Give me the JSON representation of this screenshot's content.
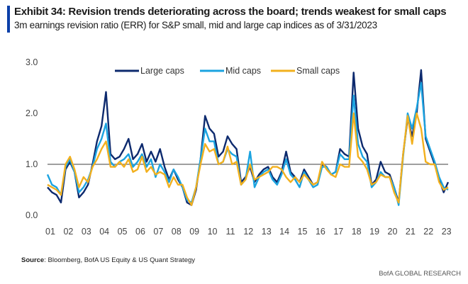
{
  "header": {
    "title": "Exhibit 34: Revision trends deteriorating across the board; trends weakest for small caps",
    "subtitle": "3m earnings revision ratio (ERR) for S&P small, mid and large cap indices as of 3/31/2023"
  },
  "footer": {
    "source_label": "Source",
    "source_text": ": Bloomberg, BofA US Equity & US Quant Strategy",
    "brand": "BofA GLOBAL RESEARCH"
  },
  "chart_data": {
    "type": "line",
    "title": "3m earnings revision ratio (ERR)",
    "xlabel": "",
    "ylabel": "",
    "ylim": [
      0,
      3
    ],
    "xlim": [
      2001,
      2023.25
    ],
    "yticks": [
      "0.0",
      "1.0",
      "2.0",
      "3.0"
    ],
    "ytick_values": [
      0,
      1,
      2,
      3
    ],
    "xticks": [
      "01",
      "02",
      "03",
      "04",
      "05",
      "06",
      "07",
      "08",
      "09",
      "10",
      "11",
      "12",
      "13",
      "14",
      "15",
      "16",
      "17",
      "18",
      "19",
      "20",
      "21",
      "22",
      "23"
    ],
    "reference_line": 1.0,
    "grid": false,
    "legend": "top-center",
    "x": [
      2001.0,
      2001.25,
      2001.5,
      2001.75,
      2002.0,
      2002.25,
      2002.5,
      2002.75,
      2003.0,
      2003.25,
      2003.5,
      2003.75,
      2004.0,
      2004.25,
      2004.5,
      2004.75,
      2005.0,
      2005.25,
      2005.5,
      2005.75,
      2006.0,
      2006.25,
      2006.5,
      2006.75,
      2007.0,
      2007.25,
      2007.5,
      2007.75,
      2008.0,
      2008.25,
      2008.5,
      2008.75,
      2009.0,
      2009.25,
      2009.5,
      2009.75,
      2010.0,
      2010.25,
      2010.5,
      2010.75,
      2011.0,
      2011.25,
      2011.5,
      2011.75,
      2012.0,
      2012.25,
      2012.5,
      2012.75,
      2013.0,
      2013.25,
      2013.5,
      2013.75,
      2014.0,
      2014.25,
      2014.5,
      2014.75,
      2015.0,
      2015.25,
      2015.5,
      2015.75,
      2016.0,
      2016.25,
      2016.5,
      2016.75,
      2017.0,
      2017.25,
      2017.5,
      2017.75,
      2018.0,
      2018.25,
      2018.5,
      2018.75,
      2019.0,
      2019.25,
      2019.5,
      2019.75,
      2020.0,
      2020.25,
      2020.5,
      2020.75,
      2021.0,
      2021.25,
      2021.5,
      2021.75,
      2022.0,
      2022.25,
      2022.5,
      2022.75,
      2023.0,
      2023.25
    ],
    "series": [
      {
        "name": "Large caps",
        "color": "#0d2a6e",
        "values": [
          0.55,
          0.45,
          0.4,
          0.25,
          0.9,
          1.05,
          0.85,
          0.35,
          0.45,
          0.6,
          1.0,
          1.45,
          1.75,
          2.42,
          1.2,
          1.1,
          1.15,
          1.3,
          1.5,
          1.1,
          1.2,
          1.4,
          1.05,
          1.25,
          1.05,
          1.3,
          0.95,
          0.7,
          0.9,
          0.7,
          0.55,
          0.25,
          0.2,
          0.5,
          1.1,
          1.95,
          1.7,
          1.6,
          1.15,
          1.25,
          1.55,
          1.4,
          1.3,
          0.65,
          0.75,
          0.95,
          0.65,
          0.8,
          0.9,
          0.95,
          0.75,
          0.65,
          0.85,
          1.25,
          0.85,
          0.75,
          0.65,
          0.9,
          0.75,
          0.6,
          0.65,
          1.0,
          0.95,
          0.8,
          0.85,
          1.3,
          1.2,
          1.15,
          2.8,
          1.7,
          1.35,
          1.2,
          0.6,
          0.7,
          1.05,
          0.85,
          0.8,
          0.55,
          0.25,
          1.2,
          1.9,
          1.55,
          2.0,
          2.85,
          1.5,
          1.25,
          1.0,
          0.7,
          0.45,
          0.65
        ]
      },
      {
        "name": "Mid caps",
        "color": "#1ba3e0",
        "values": [
          0.8,
          0.6,
          0.55,
          0.4,
          0.95,
          1.1,
          0.85,
          0.45,
          0.55,
          0.7,
          0.95,
          1.3,
          1.5,
          1.8,
          1.05,
          0.95,
          1.05,
          1.1,
          1.2,
          0.95,
          1.05,
          1.2,
          0.95,
          1.1,
          0.75,
          1.0,
          0.85,
          0.65,
          0.9,
          0.75,
          0.55,
          0.3,
          0.25,
          0.55,
          1.1,
          1.7,
          1.45,
          1.45,
          1.0,
          1.05,
          1.3,
          1.2,
          1.15,
          0.6,
          0.7,
          1.25,
          0.55,
          0.75,
          0.85,
          0.9,
          0.7,
          0.6,
          0.8,
          1.1,
          0.8,
          0.7,
          0.55,
          0.85,
          0.7,
          0.55,
          0.6,
          0.95,
          0.95,
          0.8,
          0.85,
          1.2,
          1.1,
          1.1,
          2.35,
          1.4,
          1.15,
          1.05,
          0.55,
          0.65,
          0.85,
          0.75,
          0.75,
          0.55,
          0.2,
          1.15,
          2.0,
          1.7,
          2.1,
          2.6,
          1.55,
          1.3,
          1.05,
          0.75,
          0.55,
          0.5
        ]
      },
      {
        "name": "Small caps",
        "color": "#f2b01e",
        "values": [
          0.6,
          0.55,
          0.5,
          0.4,
          1.0,
          1.15,
          0.9,
          0.55,
          0.75,
          0.65,
          0.95,
          1.1,
          1.3,
          1.45,
          0.95,
          0.95,
          1.05,
          0.95,
          1.1,
          0.85,
          0.9,
          1.15,
          0.85,
          0.95,
          0.8,
          0.85,
          0.8,
          0.55,
          0.75,
          0.6,
          0.6,
          0.35,
          0.2,
          0.55,
          1.0,
          1.4,
          1.25,
          1.3,
          1.0,
          1.05,
          1.35,
          1.0,
          1.05,
          0.6,
          0.7,
          1.0,
          0.7,
          0.75,
          0.8,
          0.85,
          0.95,
          0.95,
          0.9,
          0.75,
          0.65,
          0.75,
          0.65,
          0.8,
          0.7,
          0.6,
          0.65,
          1.05,
          0.9,
          0.8,
          0.75,
          1.0,
          0.95,
          0.95,
          2.0,
          1.15,
          1.05,
          0.9,
          0.6,
          0.65,
          0.8,
          0.75,
          0.75,
          0.45,
          0.25,
          1.2,
          1.95,
          1.4,
          2.0,
          1.7,
          1.05,
          1.0,
          1.0,
          0.65,
          0.5,
          0.55
        ]
      }
    ]
  }
}
